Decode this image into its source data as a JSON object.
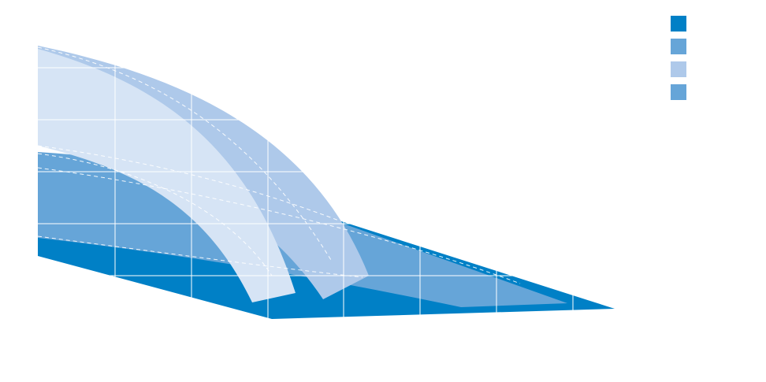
{
  "legend": {
    "colors": [
      "#0080c6",
      "#66a5d8",
      "#aec9ea",
      "#66a5d8"
    ]
  }
}
